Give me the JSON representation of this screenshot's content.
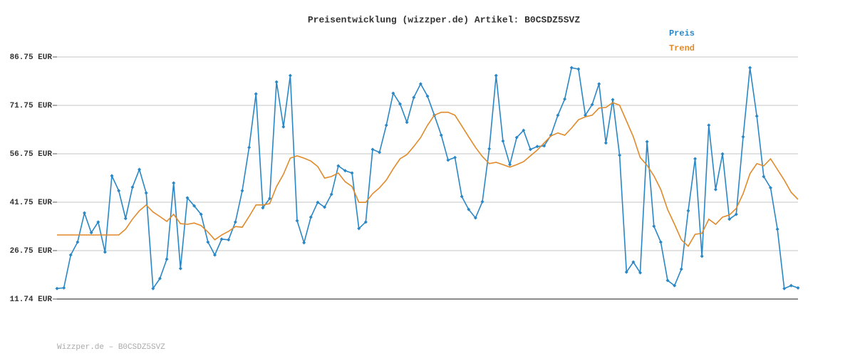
{
  "chart_data": {
    "type": "line",
    "title": "Preisentwicklung (wizzper.de) Artikel: B0CSDZ5SVZ",
    "footer": "Wizzper.de – B0CSDZ5SVZ",
    "ylim": [
      11.74,
      86.75
    ],
    "yticks": [
      {
        "value": 11.74,
        "label": "11.74 EUR"
      },
      {
        "value": 26.75,
        "label": "26.75 EUR"
      },
      {
        "value": 41.75,
        "label": "41.75 EUR"
      },
      {
        "value": 56.75,
        "label": "56.75 EUR"
      },
      {
        "value": 71.75,
        "label": "71.75 EUR"
      },
      {
        "value": 86.75,
        "label": "86.75 EUR"
      }
    ],
    "grid": true,
    "legend": "top-right",
    "series": [
      {
        "name": "Preis",
        "color": "#2a87c5",
        "markers": true,
        "values": [
          15.0,
          15.2,
          25.4,
          29.4,
          38.4,
          32.3,
          35.6,
          26.3,
          49.9,
          45.3,
          36.7,
          46.4,
          51.9,
          44.6,
          15.0,
          18.1,
          24.1,
          47.7,
          21.2,
          43.1,
          40.6,
          38.0,
          29.4,
          25.4,
          30.3,
          30.1,
          35.6,
          45.3,
          58.7,
          75.3,
          40.0,
          42.9,
          79.0,
          65.1,
          81.0,
          36.0,
          29.2,
          37.1,
          41.7,
          40.2,
          44.2,
          53.0,
          51.5,
          50.8,
          33.6,
          35.6,
          58.1,
          57.2,
          65.6,
          75.5,
          72.2,
          66.5,
          74.2,
          78.4,
          74.6,
          68.7,
          62.5,
          54.8,
          55.6,
          43.5,
          39.5,
          36.9,
          41.9,
          58.3,
          81.0,
          60.7,
          53.4,
          61.8,
          64.0,
          58.1,
          59.0,
          59.2,
          62.5,
          68.7,
          73.7,
          83.4,
          83.0,
          68.7,
          72.0,
          78.4,
          60.1,
          73.5,
          56.3,
          20.1,
          23.2,
          19.9,
          60.5,
          34.3,
          29.4,
          17.5,
          15.9,
          21.0,
          39.1,
          55.2,
          25.0,
          65.6,
          45.7,
          56.7,
          36.5,
          38.0,
          62.0,
          83.4,
          68.4,
          49.7,
          46.2,
          33.4,
          15.0,
          15.9,
          15.2
        ]
      },
      {
        "name": "Trend",
        "color": "#e08a2a",
        "markers": false,
        "values": [
          31.6,
          31.6,
          31.6,
          31.6,
          31.6,
          31.6,
          31.6,
          31.6,
          31.6,
          31.6,
          33.4,
          36.5,
          39.1,
          40.9,
          38.7,
          37.3,
          35.8,
          38.0,
          35.1,
          34.9,
          35.3,
          34.5,
          32.5,
          30.1,
          31.6,
          32.7,
          34.2,
          34.0,
          37.3,
          40.9,
          40.9,
          41.3,
          46.6,
          50.4,
          55.4,
          56.1,
          55.4,
          54.5,
          52.8,
          49.2,
          49.7,
          50.8,
          48.1,
          46.6,
          41.7,
          41.7,
          44.4,
          46.2,
          48.6,
          52.1,
          55.2,
          56.5,
          59.0,
          61.8,
          65.6,
          68.7,
          69.6,
          69.6,
          68.7,
          65.4,
          62.0,
          58.7,
          55.9,
          53.7,
          54.1,
          53.4,
          52.6,
          53.4,
          54.3,
          56.1,
          57.9,
          60.1,
          62.3,
          63.2,
          62.5,
          64.7,
          67.3,
          68.2,
          68.7,
          70.9,
          71.1,
          72.6,
          71.8,
          66.9,
          62.0,
          55.6,
          53.2,
          49.9,
          45.7,
          39.5,
          34.9,
          30.1,
          28.1,
          31.8,
          32.1,
          36.5,
          34.9,
          37.1,
          37.8,
          39.8,
          44.4,
          50.6,
          53.7,
          53.0,
          55.2,
          51.9,
          48.6,
          44.8,
          42.6
        ]
      }
    ]
  }
}
